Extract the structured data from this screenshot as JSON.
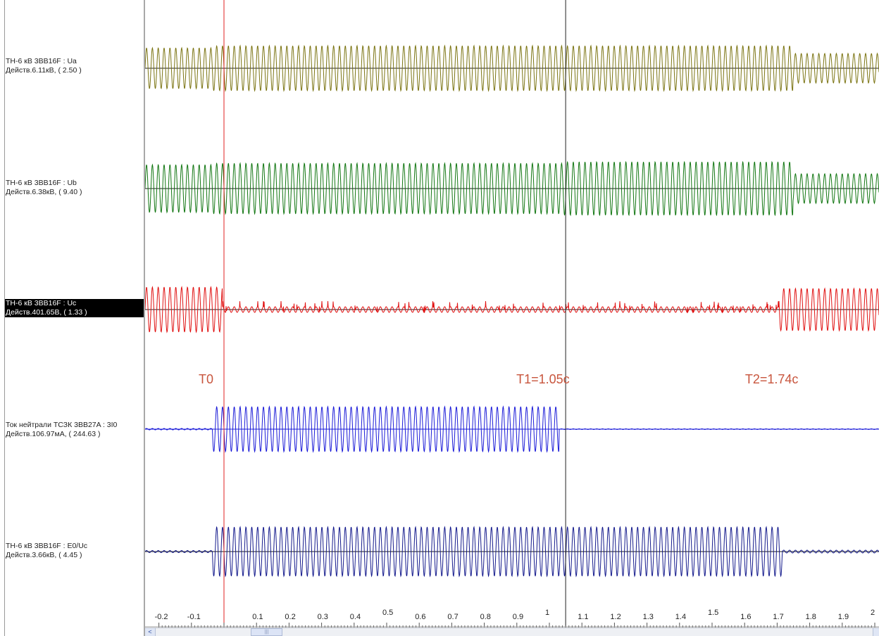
{
  "channels": [
    {
      "name": "TH-6 кВ 3BB16F : Ua",
      "value": "Действ.6.11кВ, ( 2.50 )",
      "color": "#7b7412",
      "selected": false
    },
    {
      "name": "TH-6 кВ 3BB16F : Ub",
      "value": "Действ.6.38кВ, ( 9.40 )",
      "color": "#117611",
      "selected": false
    },
    {
      "name": "TH-6 кВ 3BB16F : Uc",
      "value": "Действ.401.65В, ( 1.33 )",
      "color": "#e01010",
      "selected": true
    },
    {
      "name": "Ток нейтрали ТСЗК 3BB27A : 3I0",
      "value": "Действ.106.97мА, ( 244.63 )",
      "color": "#1a1ad8",
      "selected": false
    },
    {
      "name": "TH-6 кВ 3BB16F : E0/Uc",
      "value": "Действ.3.66кВ, ( 4.45 )",
      "color": "#141a8c",
      "selected": false
    }
  ],
  "markers": [
    {
      "label": "T0",
      "time": 0.0,
      "line_color": "#e02020"
    },
    {
      "label": "T1=1.05с",
      "time": 1.05,
      "line_color": "#222222"
    },
    {
      "label": "T2=1.74с",
      "time": 1.74,
      "line_color": null
    }
  ],
  "marker_label_color": "#c8553d",
  "time_axis": {
    "min": -0.2,
    "max": 2.0,
    "unit": "s",
    "tick_labels": [
      "-0.2",
      "-0.1",
      "0.1",
      "0.2",
      "0.3",
      "0.4",
      "0.5",
      "0.6",
      "0.7",
      "0.8",
      "0.9",
      "1",
      "1.1",
      "1.2",
      "1.3",
      "1.4",
      "1.5",
      "1.6",
      "1.7",
      "1.8",
      "1.9",
      "2"
    ]
  },
  "scrollbar": {
    "left_arrow": "<",
    "thumb_grip": "|||"
  }
}
